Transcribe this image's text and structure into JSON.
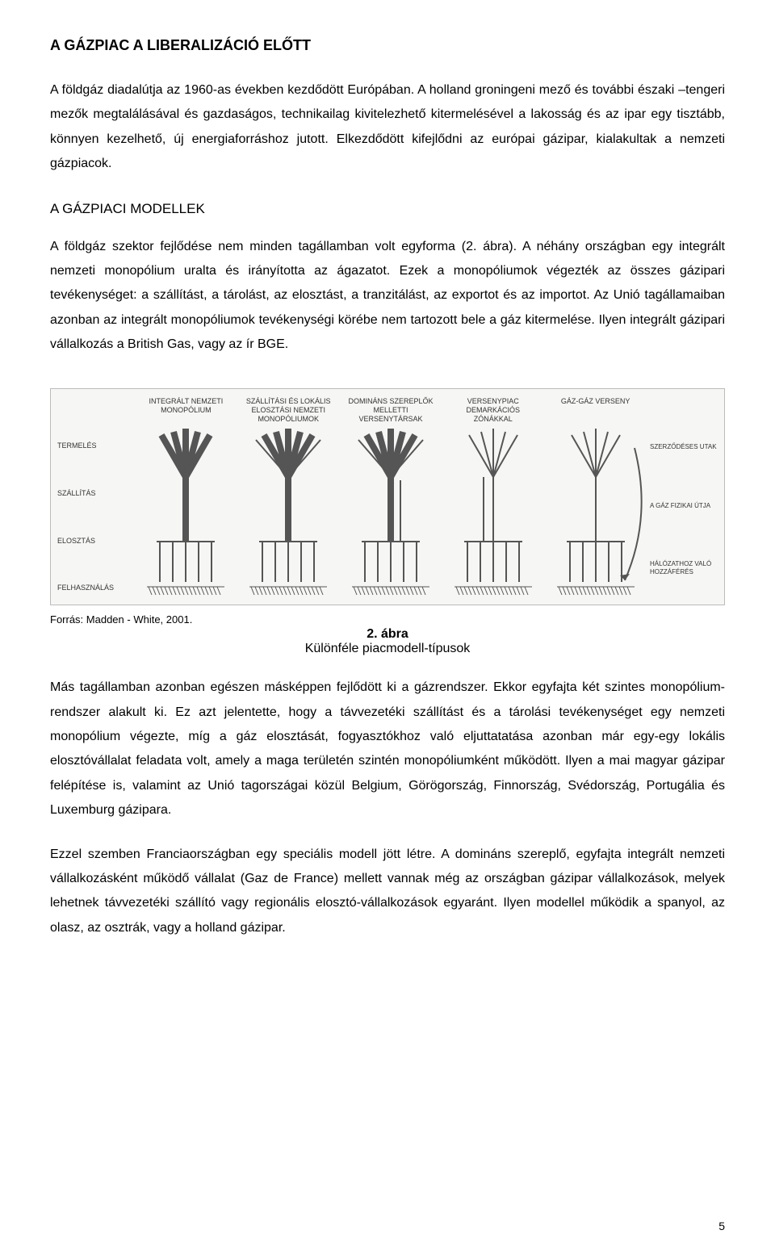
{
  "title": "A GÁZPIAC A LIBERALIZÁCIÓ ELŐTT",
  "para1": "A földgáz diadalútja az 1960-as években kezdődött Európában. A holland groningeni mező és további északi –tengeri mezők megtalálásával és gazdaságos, technikailag kivitelezhető kitermelésével a lakosság és az ipar egy tisztább, könnyen kezelhető, új energiaforráshoz jutott. Elkezdődött kifejlődni az európai gázipar, kialakultak a nemzeti gázpiacok.",
  "h2": "A GÁZPIACI MODELLEK",
  "para2": "A földgáz szektor fejlődése nem minden tagállamban volt egyforma (2. ábra). A néhány országban egy integrált nemzeti monopólium uralta és irányította az ágazatot. Ezek a monopóliumok végezték az összes gázipari tevékenységet: a szállítást, a tárolást, az elosztást, a tranzitálást, az exportot és az importot. Az Unió tagállamaiban azonban az integrált monopóliumok tevékenységi körébe nem tartozott bele a gáz kitermelése. Ilyen integrált gázipari vállalkozás a British Gas, vagy az ír BGE.",
  "figure": {
    "columns": [
      "INTEGRÁLT NEMZETI MONOPÓLIUM",
      "SZÁLLÍTÁSI ÉS LOKÁLIS ELOSZTÁSI NEMZETI MONOPÓLIUMOK",
      "DOMINÁNS SZEREPLŐK MELLETTI VERSENYTÁRSAK",
      "VERSENYPIAC DEMARKÁCIÓS ZÓNÁKKAL",
      "GÁZ-GÁZ VERSENY"
    ],
    "rows": [
      "TERMELÉS",
      "SZÁLLÍTÁS",
      "ELOSZTÁS",
      "FELHASZNÁLÁS"
    ],
    "rightTop": "SZERZŐDÉSES UTAK",
    "rightMid": "A GÁZ FIZIKAI ÚTJA",
    "rightBot": "HÁLÓZATHOZ VALÓ HOZZÁFÉRÉS",
    "source": "Forrás: Madden - White, 2001.",
    "captionNum": "2. ábra",
    "captionText": "Különféle piacmodell-típusok"
  },
  "para3": "Más tagállamban azonban egészen másképpen fejlődött ki a gázrendszer. Ekkor egyfajta két szintes monopólium-rendszer alakult ki. Ez azt jelentette, hogy a távvezetéki szállítást és a tárolási tevékenységet egy nemzeti monopólium végezte, míg a gáz elosztását, fogyasztókhoz való eljuttatatása azonban már egy-egy lokális elosztóvállalat feladata volt, amely a maga területén szintén monopóliumként működött. Ilyen a mai magyar gázipar felépítése is, valamint az Unió tagországai közül Belgium, Görögország, Finnország, Svédország, Portugália és Luxemburg gázipara.",
  "para4": "Ezzel szemben Franciaországban egy speciális modell jött létre. A domináns szereplő, egyfajta integrált nemzeti vállalkozásként működő vállalat (Gaz de France) mellett vannak még az országban gázipar vállalkozások, melyek lehetnek távvezetéki szállító vagy regionális elosztó-vállalkozások egyaránt. Ilyen modellel működik a spanyol, az olasz, az osztrák, vagy a holland gázipar.",
  "pagenum": "5",
  "style": {
    "stroke": "#555555",
    "thick": 8,
    "thin": 2
  }
}
